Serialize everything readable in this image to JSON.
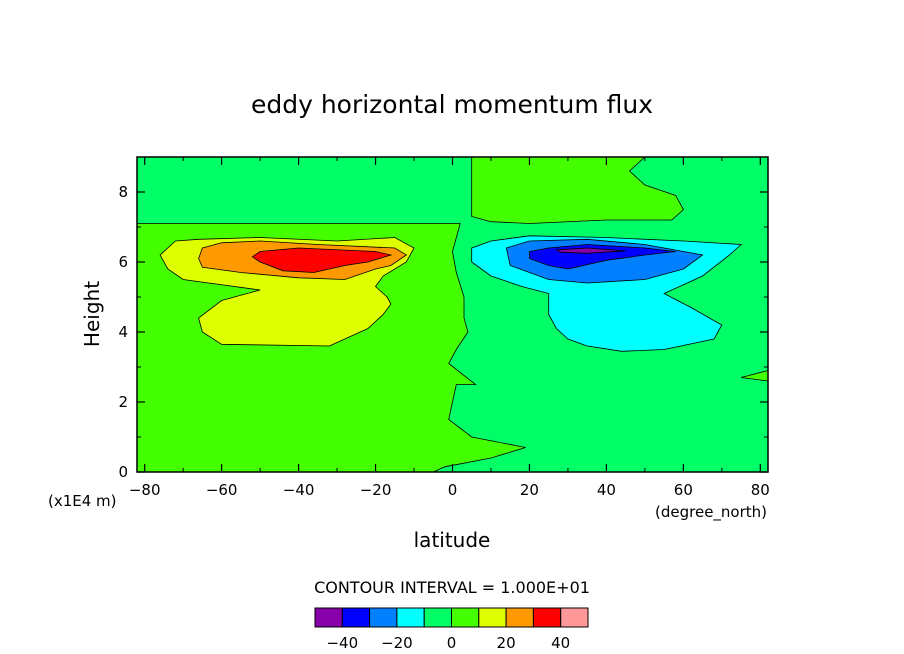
{
  "chart_data": {
    "type": "contour",
    "title": "eddy horizontal momentum flux",
    "xlabel": "latitude",
    "xunits": "(degree_north)",
    "ylabel": "Height",
    "yunits": "(x1E4 m)",
    "xlim": [
      -82,
      82
    ],
    "ylim": [
      0,
      9
    ],
    "xticks": [
      -80,
      -60,
      -40,
      -20,
      0,
      20,
      40,
      60,
      80
    ],
    "xtick_labels": [
      "-80",
      "-60",
      "-40",
      "-20",
      "0",
      "20",
      "40",
      "60",
      "80"
    ],
    "yticks": [
      0,
      2,
      4,
      6,
      8
    ],
    "ytick_labels": [
      "0",
      "2",
      "4",
      "6",
      "8"
    ],
    "contour_interval_label": "CONTOUR INTERVAL = 1.000E+01",
    "colorbar": {
      "colors": [
        "#8800aa",
        "#0000ff",
        "#0080ff",
        "#00ffff",
        "#00ff66",
        "#44ff00",
        "#ddff00",
        "#ff9900",
        "#ff0000",
        "#ff9999"
      ],
      "tick_values": [
        -40,
        -20,
        0,
        20,
        40
      ],
      "tick_labels": [
        "−40",
        "−20",
        "0",
        "20",
        "40"
      ]
    },
    "regions": [
      {
        "level": "0..10",
        "color": "#44ff00",
        "points": [
          [
            -82,
            0
          ],
          [
            -5,
            0
          ],
          [
            -2,
            0.15
          ],
          [
            10,
            0.4
          ],
          [
            19,
            0.7
          ],
          [
            5,
            1
          ],
          [
            -1,
            1.5
          ],
          [
            1,
            2.5
          ],
          [
            6,
            2.5
          ],
          [
            -1,
            3.1
          ],
          [
            1,
            3.5
          ],
          [
            4,
            4
          ],
          [
            3,
            4.4
          ],
          [
            3,
            5
          ],
          [
            1,
            5.7
          ],
          [
            0,
            6.3
          ],
          [
            2,
            7.1
          ],
          [
            -82,
            7.1
          ]
        ]
      },
      {
        "level": "0..10",
        "color": "#44ff00",
        "points": [
          [
            5,
            9
          ],
          [
            5,
            7.3
          ],
          [
            10,
            7.15
          ],
          [
            20,
            7.1
          ],
          [
            40,
            7.2
          ],
          [
            57,
            7.2
          ],
          [
            60,
            7.5
          ],
          [
            58,
            7.9
          ],
          [
            50,
            8.2
          ],
          [
            46,
            8.6
          ],
          [
            50,
            9
          ]
        ]
      },
      {
        "level": "0..10",
        "color": "#44ff00",
        "points": [
          [
            82,
            2.6
          ],
          [
            75,
            2.7
          ],
          [
            82,
            2.9
          ]
        ]
      },
      {
        "level": "10..20",
        "color": "#ddff00",
        "points": [
          [
            -72,
            6.6
          ],
          [
            -66,
            6.65
          ],
          [
            -50,
            6.7
          ],
          [
            -30,
            6.6
          ],
          [
            -15,
            6.7
          ],
          [
            -10,
            6.4
          ],
          [
            -12,
            6
          ],
          [
            -18,
            5.6
          ],
          [
            -20,
            5.3
          ],
          [
            -17,
            5
          ],
          [
            -16,
            4.8
          ],
          [
            -18,
            4.5
          ],
          [
            -22,
            4.1
          ],
          [
            -32,
            3.6
          ],
          [
            -60,
            3.65
          ],
          [
            -65,
            4
          ],
          [
            -66,
            4.4
          ],
          [
            -60,
            4.9
          ],
          [
            -50,
            5.2
          ],
          [
            -70,
            5.5
          ],
          [
            -74,
            5.8
          ],
          [
            -76,
            6.2
          ]
        ]
      },
      {
        "level": "20..30",
        "color": "#ff9900",
        "points": [
          [
            -65,
            6.4
          ],
          [
            -60,
            6.55
          ],
          [
            -50,
            6.6
          ],
          [
            -35,
            6.5
          ],
          [
            -15,
            6.4
          ],
          [
            -12,
            6.2
          ],
          [
            -16,
            5.9
          ],
          [
            -20,
            5.8
          ],
          [
            -28,
            5.5
          ],
          [
            -40,
            5.55
          ],
          [
            -55,
            5.7
          ],
          [
            -65,
            5.85
          ],
          [
            -66,
            6.1
          ]
        ]
      },
      {
        "level": "30..40",
        "color": "#ff0000",
        "points": [
          [
            -50,
            6.3
          ],
          [
            -40,
            6.4
          ],
          [
            -20,
            6.3
          ],
          [
            -16,
            6.2
          ],
          [
            -22,
            6.0
          ],
          [
            -28,
            5.9
          ],
          [
            -36,
            5.7
          ],
          [
            -44,
            5.75
          ],
          [
            -50,
            6.0
          ],
          [
            -52,
            6.15
          ]
        ]
      },
      {
        "level": "-10..0",
        "color": "#00ffff",
        "points": [
          [
            5,
            6.4
          ],
          [
            10,
            6.6
          ],
          [
            20,
            6.75
          ],
          [
            40,
            6.7
          ],
          [
            60,
            6.6
          ],
          [
            75,
            6.5
          ],
          [
            72,
            6.2
          ],
          [
            65,
            5.6
          ],
          [
            55,
            5.1
          ],
          [
            62,
            4.7
          ],
          [
            70,
            4.2
          ],
          [
            68,
            3.8
          ],
          [
            55,
            3.5
          ],
          [
            44,
            3.45
          ],
          [
            35,
            3.6
          ],
          [
            30,
            3.8
          ],
          [
            27,
            4.1
          ],
          [
            25,
            4.5
          ],
          [
            25,
            5.1
          ],
          [
            18,
            5.3
          ],
          [
            10,
            5.6
          ],
          [
            5,
            6.0
          ]
        ]
      },
      {
        "level": "-20..-10",
        "color": "#0080ff",
        "points": [
          [
            14,
            6.4
          ],
          [
            20,
            6.6
          ],
          [
            35,
            6.65
          ],
          [
            50,
            6.5
          ],
          [
            65,
            6.2
          ],
          [
            60,
            5.8
          ],
          [
            50,
            5.5
          ],
          [
            35,
            5.4
          ],
          [
            25,
            5.5
          ],
          [
            15,
            5.9
          ]
        ]
      },
      {
        "level": "-30..-20",
        "color": "#0000ff",
        "points": [
          [
            20,
            6.3
          ],
          [
            25,
            6.4
          ],
          [
            35,
            6.5
          ],
          [
            50,
            6.4
          ],
          [
            58,
            6.3
          ],
          [
            50,
            6.2
          ],
          [
            40,
            6.05
          ],
          [
            30,
            5.8
          ],
          [
            25,
            5.9
          ],
          [
            20,
            6.1
          ]
        ]
      },
      {
        "level": "-40..-30",
        "color": "#8800aa",
        "points": [
          [
            27,
            6.35
          ],
          [
            35,
            6.4
          ],
          [
            45,
            6.32
          ],
          [
            35,
            6.25
          ],
          [
            28,
            6.28
          ]
        ]
      }
    ]
  }
}
